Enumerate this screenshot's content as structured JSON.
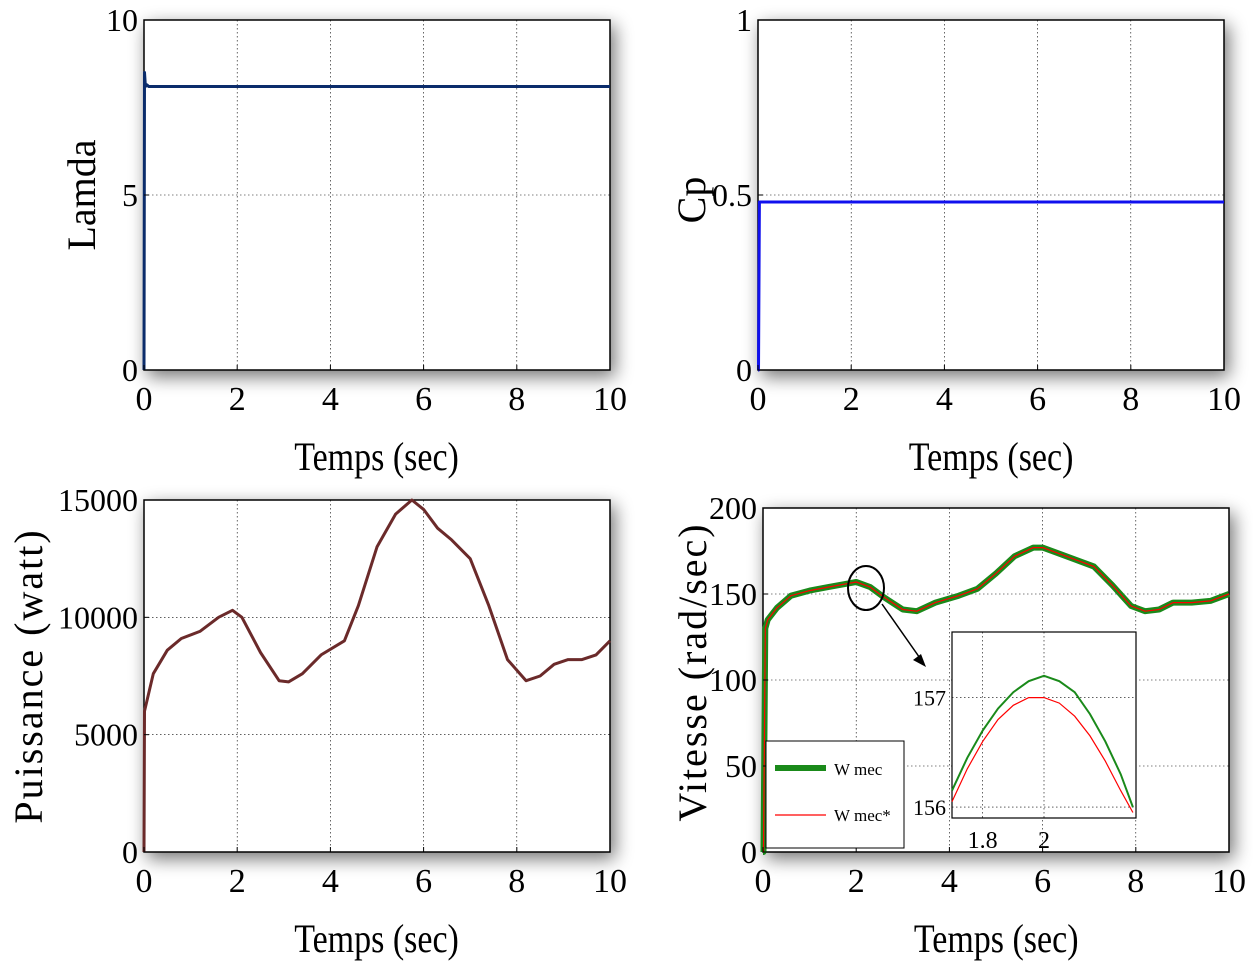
{
  "chart_data": [
    {
      "type": "line",
      "xlabel": "Temps (sec)",
      "ylabel": "Lamda",
      "xlim": [
        0,
        10
      ],
      "ylim": [
        0,
        10
      ],
      "xticks": [
        "0",
        "2",
        "4",
        "6",
        "8",
        "10"
      ],
      "yticks": [
        "0",
        "5",
        "10"
      ],
      "grid": true,
      "series": [
        {
          "color": "#0b2c6b",
          "x": [
            0,
            0.01,
            0.03,
            0.06,
            0.1,
            10
          ],
          "y": [
            0,
            8.5,
            8.1,
            8.15,
            8.1,
            8.1
          ]
        }
      ]
    },
    {
      "type": "line",
      "xlabel": "Temps (sec)",
      "ylabel": "Cp",
      "xlim": [
        0,
        10
      ],
      "ylim": [
        0,
        1
      ],
      "xticks": [
        "0",
        "2",
        "4",
        "6",
        "8",
        "10"
      ],
      "yticks": [
        "0",
        "0.5",
        "1"
      ],
      "grid": true,
      "series": [
        {
          "color": "#1010ee",
          "x": [
            0,
            0.01,
            0.03,
            10
          ],
          "y": [
            0,
            0,
            0.48,
            0.48
          ]
        }
      ]
    },
    {
      "type": "line",
      "xlabel": "Temps (sec)",
      "ylabel": "Puissance (watt)",
      "xlim": [
        0,
        10
      ],
      "ylim": [
        0,
        15000
      ],
      "xticks": [
        "0",
        "2",
        "4",
        "6",
        "8",
        "10"
      ],
      "yticks": [
        "0",
        "5000",
        "10000",
        "15000"
      ],
      "grid": true,
      "series": [
        {
          "color": "#6b2a2a",
          "x": [
            0,
            0.01,
            0.2,
            0.5,
            0.8,
            1.2,
            1.6,
            1.9,
            2.1,
            2.5,
            2.9,
            3.1,
            3.4,
            3.8,
            4.3,
            4.6,
            5.0,
            5.4,
            5.75,
            6.0,
            6.3,
            6.6,
            7.0,
            7.4,
            7.8,
            8.2,
            8.5,
            8.8,
            9.1,
            9.4,
            9.7,
            10.0
          ],
          "y": [
            0,
            6000,
            7600,
            8600,
            9100,
            9400,
            10000,
            10300,
            10000,
            8500,
            7300,
            7250,
            7600,
            8400,
            9000,
            10500,
            13000,
            14400,
            15000,
            14600,
            13800,
            13300,
            12500,
            10500,
            8200,
            7300,
            7500,
            8000,
            8200,
            8200,
            8400,
            9000
          ]
        }
      ]
    },
    {
      "type": "line",
      "xlabel": "Temps (sec)",
      "ylabel": "Vitesse (rad/sec)",
      "xlim": [
        0,
        10
      ],
      "ylim": [
        0,
        200
      ],
      "xticks": [
        "0",
        "2",
        "4",
        "6",
        "8",
        "10"
      ],
      "yticks": [
        "0",
        "50",
        "100",
        "150",
        "200"
      ],
      "grid": true,
      "legend": "lower-left",
      "series": [
        {
          "name": "W mec",
          "color": "#1a8a1a",
          "x": [
            0,
            0.01,
            0.05,
            0.1,
            0.3,
            0.6,
            1.0,
            1.4,
            1.8,
            2.0,
            2.3,
            2.6,
            3.0,
            3.3,
            3.7,
            4.2,
            4.6,
            5.0,
            5.4,
            5.8,
            6.0,
            6.3,
            6.7,
            7.1,
            7.5,
            7.9,
            8.2,
            8.5,
            8.8,
            9.2,
            9.6,
            10.0
          ],
          "y": [
            0,
            0,
            130,
            135,
            142,
            149,
            152,
            154,
            156,
            157,
            154,
            148,
            141,
            140,
            145,
            149,
            153,
            162,
            172,
            177,
            177,
            174,
            170,
            166,
            155,
            143,
            140,
            141,
            145,
            145,
            146,
            150
          ]
        },
        {
          "name": "W mec*",
          "color": "#ff0000",
          "x": [
            0,
            0.01,
            0.05,
            0.1,
            0.3,
            0.6,
            1.0,
            1.4,
            1.8,
            2.0,
            2.3,
            2.6,
            3.0,
            3.3,
            3.7,
            4.2,
            4.6,
            5.0,
            5.4,
            5.8,
            6.0,
            6.3,
            6.7,
            7.1,
            7.5,
            7.9,
            8.2,
            8.5,
            8.8,
            9.2,
            9.6,
            10.0
          ],
          "y": [
            0,
            0,
            130,
            135,
            142,
            149,
            152,
            154,
            156,
            157,
            154,
            148,
            141,
            140,
            145,
            149,
            153,
            162,
            172,
            177,
            177,
            174,
            170,
            166,
            155,
            143,
            140,
            141,
            145,
            145,
            146,
            150
          ]
        }
      ],
      "inset": {
        "xlim": [
          1.7,
          2.3
        ],
        "ylim": [
          155.9,
          157.6
        ],
        "xticks": [
          "1.8",
          "2"
        ],
        "yticks": [
          "156",
          "157"
        ],
        "series": [
          {
            "name": "W mec",
            "color": "#1a8a1a",
            "x": [
              1.7,
              1.75,
              1.8,
              1.85,
              1.9,
              1.95,
              2.0,
              2.05,
              2.1,
              2.15,
              2.2,
              2.25,
              2.29
            ],
            "y": [
              156.15,
              156.45,
              156.7,
              156.9,
              157.05,
              157.15,
              157.2,
              157.15,
              157.05,
              156.85,
              156.6,
              156.3,
              156.0
            ]
          },
          {
            "name": "W mec*",
            "color": "#ff0000",
            "x": [
              1.7,
              1.75,
              1.8,
              1.85,
              1.9,
              1.95,
              2.0,
              2.05,
              2.1,
              2.15,
              2.2,
              2.25,
              2.29
            ],
            "y": [
              156.05,
              156.35,
              156.6,
              156.8,
              156.93,
              157.0,
              157.0,
              156.95,
              156.83,
              156.65,
              156.42,
              156.15,
              155.95
            ]
          }
        ]
      }
    }
  ]
}
